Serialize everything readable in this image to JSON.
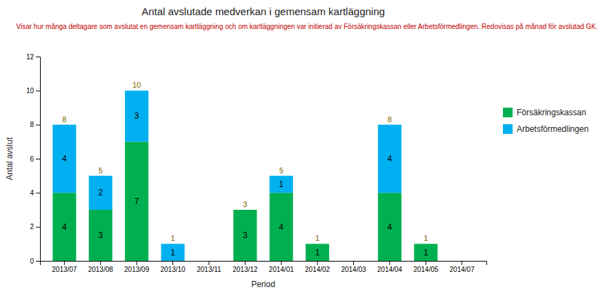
{
  "chart_data": {
    "type": "bar",
    "stacked": true,
    "title": "Antal avslutade medverkan i gemensam kartläggning",
    "subtitle": "Visar hur många deltagare som avslutat en gemensam kartläggning och om kartläggningen var initierad av Försäkringskassan eller Arbetsförmedlingen. Redovisas på månad för avslutad GK.",
    "xlabel": "Period",
    "ylabel": "Antal avslut",
    "categories": [
      "2013/07",
      "2013/08",
      "2013/09",
      "2013/10",
      "2013/11",
      "2013/12",
      "2014/01",
      "2014/02",
      "2014/03",
      "2014/04",
      "2014/05",
      "2014/07"
    ],
    "series": [
      {
        "name": "Försäkringskassan",
        "color": "#00b050",
        "values": [
          4,
          3,
          7,
          0,
          0,
          3,
          4,
          1,
          0,
          4,
          1,
          0
        ]
      },
      {
        "name": "Arbetsförmedlingen",
        "color": "#00b0f0",
        "values": [
          4,
          2,
          3,
          1,
          0,
          0,
          1,
          0,
          0,
          4,
          0,
          0
        ]
      }
    ],
    "totals": [
      8,
      5,
      10,
      1,
      0,
      3,
      5,
      1,
      0,
      8,
      1,
      0
    ],
    "data_labels": true,
    "ylim": [
      0,
      12
    ],
    "yticks": [
      0,
      2,
      4,
      6,
      8,
      10,
      12
    ],
    "grid": false,
    "legend": "right"
  }
}
